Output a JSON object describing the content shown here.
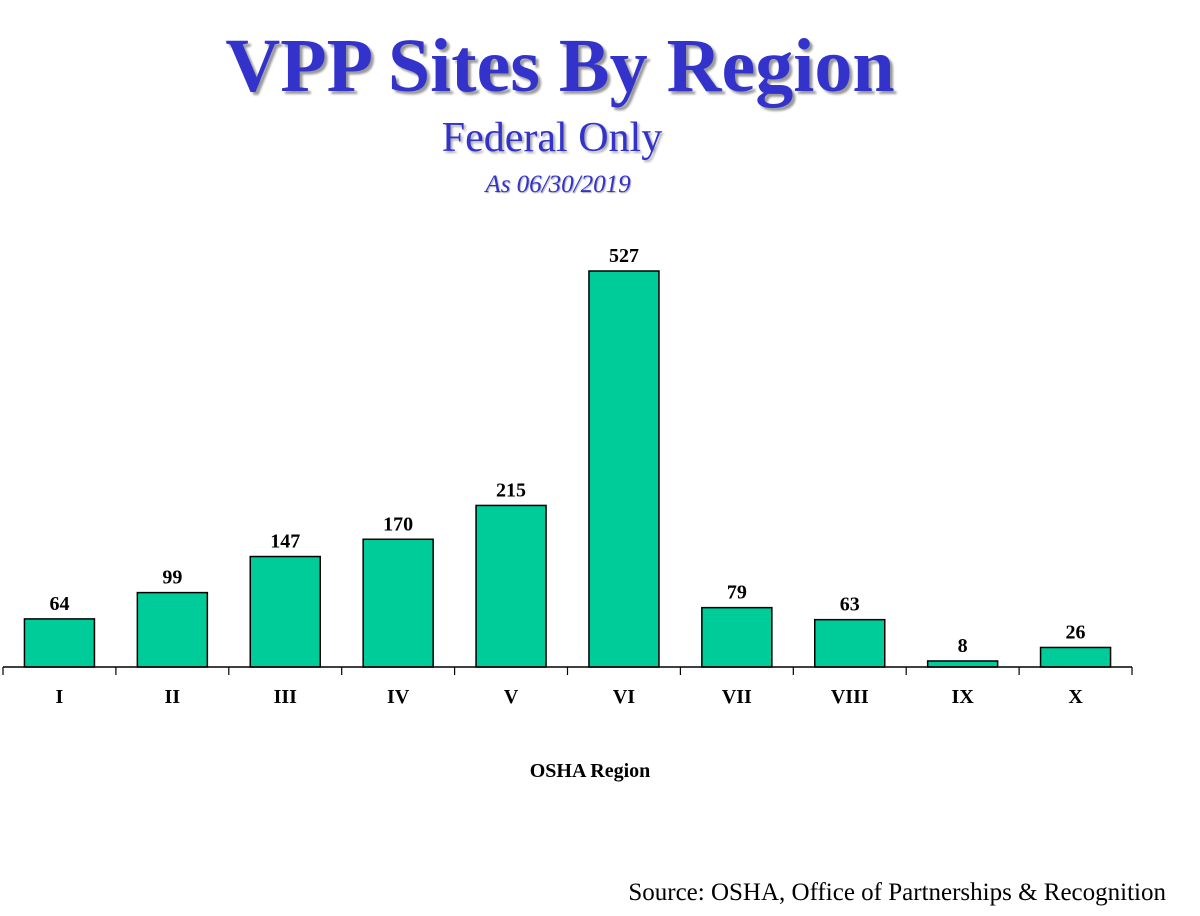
{
  "chart_data": {
    "type": "bar",
    "title": "VPP Sites By Region",
    "subtitle": "Federal Only",
    "date_note": "As 06/30/2019",
    "categories": [
      "I",
      "II",
      "III",
      "IV",
      "V",
      "VI",
      "VII",
      "VIII",
      "IX",
      "X"
    ],
    "values": [
      64,
      99,
      147,
      170,
      215,
      527,
      79,
      63,
      8,
      26
    ],
    "xlabel": "OSHA Region",
    "ylabel": "",
    "ylim": [
      0,
      527
    ],
    "grid": false,
    "bar_color": "#00cc99",
    "bar_outline": "#000000",
    "source": "Source: OSHA, Office of Partnerships & Recognition"
  }
}
